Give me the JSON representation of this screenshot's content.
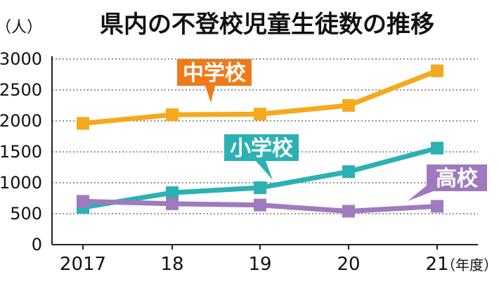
{
  "chart_data": {
    "type": "line",
    "title": "県内の不登校児童生徒数の推移",
    "unit_label": "（人）",
    "x_unit_label": "（年度）",
    "categories": [
      "2017",
      "18",
      "19",
      "20",
      "21"
    ],
    "yticks": [
      "0",
      "500",
      "1000",
      "1500",
      "2000",
      "2500",
      "3000"
    ],
    "ylim": [
      0,
      3000
    ],
    "grid": true,
    "series": [
      {
        "name": "中学校",
        "color": "#F5A91C",
        "label_bg": "#EE7A1A",
        "values": [
          1960,
          2100,
          2110,
          2250,
          2810
        ]
      },
      {
        "name": "小学校",
        "color": "#2BB1B3",
        "label_bg": "#2BB1B3",
        "values": [
          600,
          840,
          920,
          1180,
          1560
        ]
      },
      {
        "name": "高校",
        "color": "#A07AC0",
        "label_bg": "#9E79BF",
        "values": [
          700,
          660,
          640,
          540,
          620
        ]
      }
    ]
  }
}
